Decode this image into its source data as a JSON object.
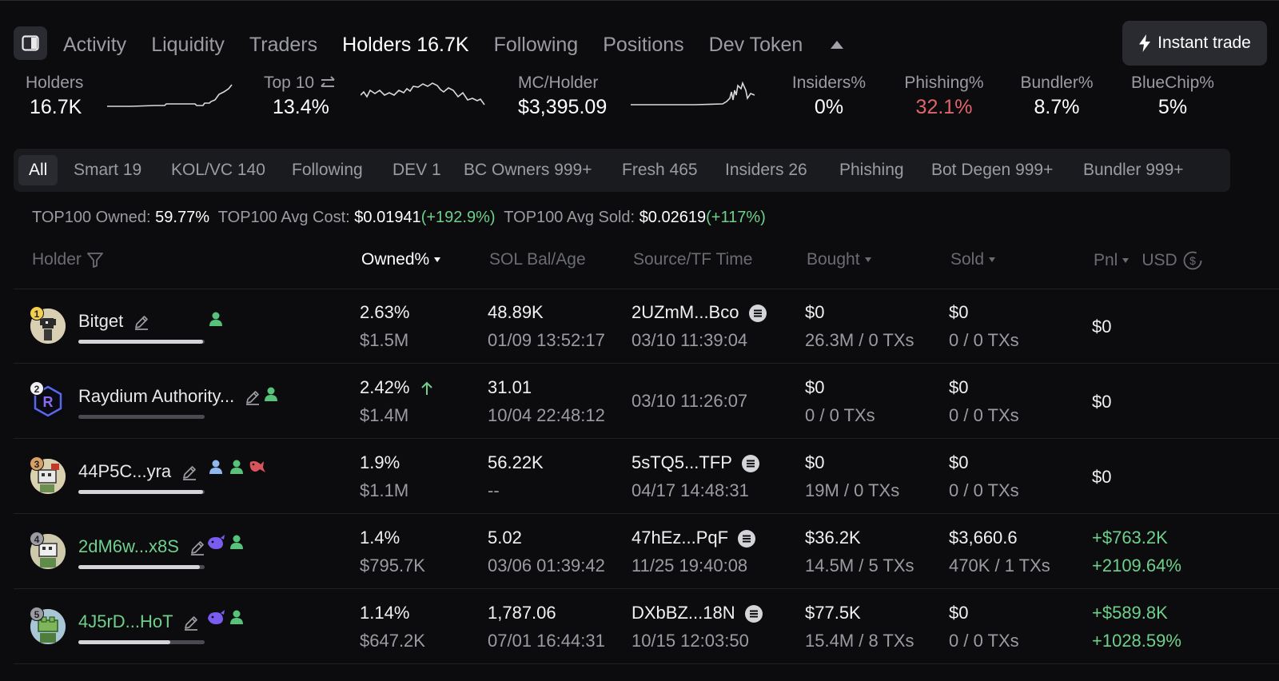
{
  "tabs": [
    {
      "label": "Activity"
    },
    {
      "label": "Liquidity"
    },
    {
      "label": "Traders"
    },
    {
      "label": "Holders 16.7K"
    },
    {
      "label": "Following"
    },
    {
      "label": "Positions"
    },
    {
      "label": "Dev Token"
    }
  ],
  "active_tab": "Holders 16.7K",
  "instant_trade_label": "Instant trade",
  "stats": {
    "holders": {
      "label": "Holders",
      "value": "16.7K"
    },
    "top10": {
      "label": "Top 10",
      "value": "13.4%"
    },
    "mc_holder": {
      "label": "MC/Holder",
      "value": "$3,395.09"
    },
    "insiders": {
      "label": "Insiders%",
      "value": "0%"
    },
    "phishing": {
      "label": "Phishing%",
      "value": "32.1%"
    },
    "bundler": {
      "label": "Bundler%",
      "value": "8.7%"
    },
    "bluechip": {
      "label": "BlueChip%",
      "value": "5%"
    }
  },
  "filters": [
    {
      "label": "All"
    },
    {
      "label": "Smart 19"
    },
    {
      "label": "KOL/VC 140"
    },
    {
      "label": "Following"
    },
    {
      "label": "DEV 1"
    },
    {
      "label": "BC Owners 999+"
    },
    {
      "label": "Fresh 465"
    },
    {
      "label": "Insiders 26"
    },
    {
      "label": "Phishing"
    },
    {
      "label": "Bot Degen 999+"
    },
    {
      "label": "Bundler 999+"
    }
  ],
  "summary": {
    "owned_label": "TOP100 Owned:",
    "owned_value": "59.77%",
    "avg_cost_label": "TOP100 Avg Cost:",
    "avg_cost_value": "$0.01941",
    "avg_cost_change": "(+192.9%)",
    "avg_sold_label": "TOP100 Avg Sold:",
    "avg_sold_value": "$0.02619",
    "avg_sold_change": "(+117%)"
  },
  "columns": {
    "holder": "Holder",
    "owned": "Owned%",
    "sol_bal": "SOL Bal/Age",
    "source": "Source/TF Time",
    "bought": "Bought",
    "sold": "Sold",
    "pnl": "Pnl",
    "usd": "USD"
  },
  "rows": [
    {
      "rank": "1",
      "name": "Bitget",
      "owned_pct": "2.63%",
      "owned_usd": "$1.5M",
      "sol_bal": "48.89K",
      "age": "01/09 13:52:17",
      "source": "2UZmM...Bco",
      "tf_time": "03/10 11:39:04",
      "bought": "$0",
      "bought_detail": "26.3M / 0 TXs",
      "sold": "$0",
      "sold_detail": "0 / 0 TXs",
      "pnl": "$0",
      "pnl_pct": "",
      "bar": 0.99
    },
    {
      "rank": "2",
      "name": "Raydium Authority...",
      "owned_pct": "2.42%",
      "owned_usd": "$1.4M",
      "sol_bal": "31.01",
      "age": "10/04 22:48:12",
      "source": "",
      "tf_time": "03/10 11:26:07",
      "bought": "$0",
      "bought_detail": "0 / 0 TXs",
      "sold": "$0",
      "sold_detail": "0 / 0 TXs",
      "pnl": "$0",
      "pnl_pct": "",
      "bar": 0
    },
    {
      "rank": "3",
      "name": "44P5C...yra",
      "owned_pct": "1.9%",
      "owned_usd": "$1.1M",
      "sol_bal": "56.22K",
      "age": "--",
      "source": "5sTQ5...TFP",
      "tf_time": "04/17 14:48:31",
      "bought": "$0",
      "bought_detail": "19M / 0 TXs",
      "sold": "$0",
      "sold_detail": "0 / 0 TXs",
      "pnl": "$0",
      "pnl_pct": "",
      "bar": 0.99
    },
    {
      "rank": "4",
      "name": "2dM6w...x8S",
      "owned_pct": "1.4%",
      "owned_usd": "$795.7K",
      "sol_bal": "5.02",
      "age": "03/06 01:39:42",
      "source": "47hEz...PqF",
      "tf_time": "11/25 19:40:08",
      "bought": "$36.2K",
      "bought_detail": "14.5M / 5 TXs",
      "sold": "$3,660.6",
      "sold_detail": "470K / 1 TXs",
      "pnl": "+$763.2K",
      "pnl_pct": "+2109.64%",
      "bar": 0.96
    },
    {
      "rank": "5",
      "name": "4J5rD...HoT",
      "owned_pct": "1.14%",
      "owned_usd": "$647.2K",
      "sol_bal": "1,787.06",
      "age": "07/01 16:44:31",
      "source": "DXbBZ...18N",
      "tf_time": "10/15 12:03:50",
      "bought": "$77.5K",
      "bought_detail": "15.4M / 8 TXs",
      "sold": "$0",
      "sold_detail": "0 / 0 TXs",
      "pnl": "+$589.8K",
      "pnl_pct": "+1028.59%",
      "bar": 0.73
    }
  ],
  "colors": {
    "accent_green": "#6fd08c",
    "phishing_red": "#e0656b",
    "purple": "#7b5cf0"
  }
}
